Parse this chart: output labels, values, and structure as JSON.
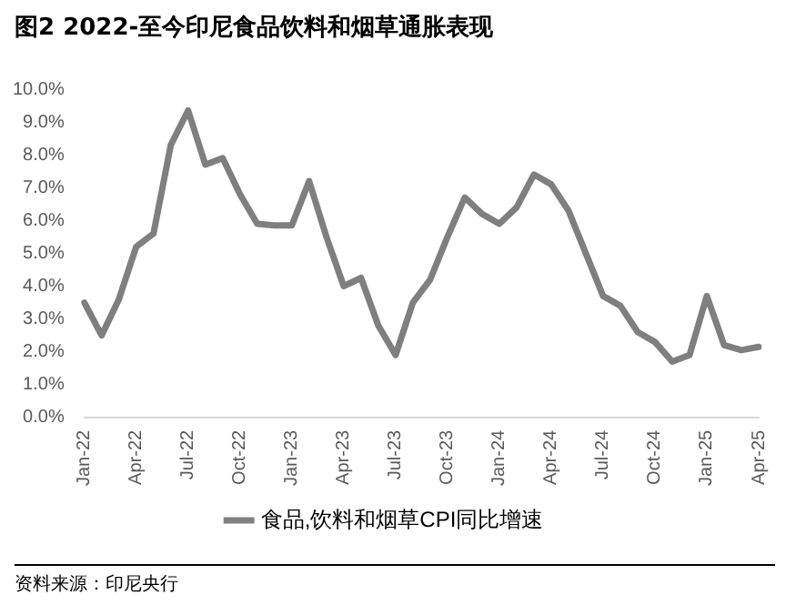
{
  "chart_data": {
    "type": "line",
    "title": "图2  2022-至今印尼食品饮料和烟草通胀表现",
    "categories": [
      "Jan-22",
      null,
      null,
      "Apr-22",
      null,
      null,
      "Jul-22",
      null,
      null,
      "Oct-22",
      null,
      null,
      "Jan-23",
      null,
      null,
      "Apr-23",
      null,
      null,
      "Jul-23",
      null,
      null,
      "Oct-23",
      null,
      null,
      "Jan-24",
      null,
      null,
      "Apr-24",
      null,
      null,
      "Jul-24",
      null,
      null,
      "Oct-24",
      null,
      null,
      "Jan-25",
      null,
      null,
      "Apr-25"
    ],
    "series": [
      {
        "name": "食品,饮料和烟草CPI同比增速",
        "color": "#7f7f7f",
        "values": [
          3.5,
          2.5,
          3.6,
          5.2,
          5.6,
          8.3,
          9.35,
          7.7,
          7.9,
          6.8,
          5.9,
          5.85,
          5.85,
          7.2,
          5.5,
          4.0,
          4.25,
          2.8,
          1.9,
          3.5,
          4.2,
          5.5,
          6.7,
          6.2,
          5.9,
          6.4,
          7.4,
          7.1,
          6.3,
          5.0,
          3.7,
          3.4,
          2.6,
          2.3,
          1.7,
          1.9,
          3.7,
          2.2,
          2.05,
          2.15
        ]
      }
    ],
    "ylim": [
      0,
      10
    ],
    "yticks": [
      {
        "value": 0,
        "label": "0.0%"
      },
      {
        "value": 1,
        "label": "1.0%"
      },
      {
        "value": 2,
        "label": "2.0%"
      },
      {
        "value": 3,
        "label": "3.0%"
      },
      {
        "value": 4,
        "label": "4.0%"
      },
      {
        "value": 5,
        "label": "5.0%"
      },
      {
        "value": 6,
        "label": "6.0%"
      },
      {
        "value": 7,
        "label": "7.0%"
      },
      {
        "value": 8,
        "label": "8.0%"
      },
      {
        "value": 9,
        "label": "9.0%"
      },
      {
        "value": 10,
        "label": "10.0%"
      }
    ],
    "legend": "bottom",
    "marker": "none",
    "line_style": "solid",
    "annotations": [
      "资料来源：印尼央行"
    ]
  }
}
